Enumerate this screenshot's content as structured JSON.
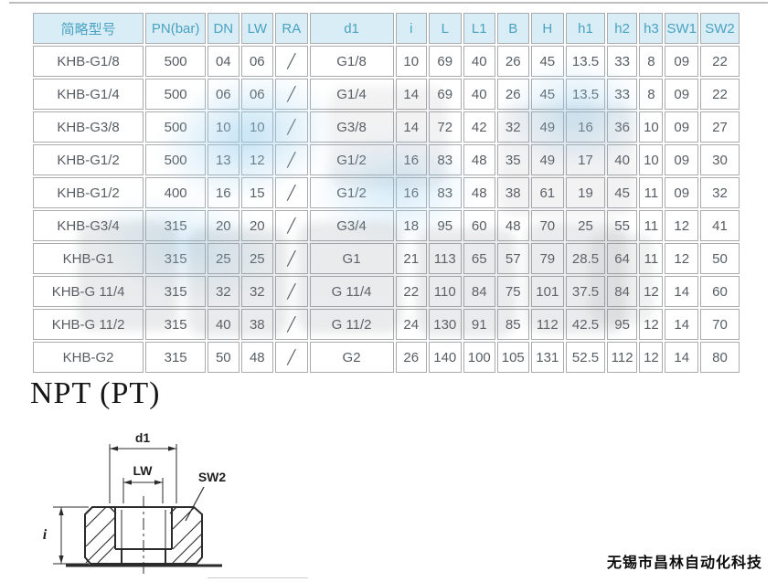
{
  "spec_table": {
    "columns": [
      "简略型号",
      "PN(bar)",
      "DN",
      "LW",
      "RA",
      "d1",
      "i",
      "L",
      "L1",
      "B",
      "H",
      "h1",
      "h2",
      "h3",
      "SW1",
      "SW2"
    ],
    "rows": [
      [
        "KHB-G1/8",
        "500",
        "04",
        "06",
        "╱",
        "G1/8",
        "10",
        "69",
        "40",
        "26",
        "45",
        "13.5",
        "33",
        "8",
        "09",
        "22"
      ],
      [
        "KHB-G1/4",
        "500",
        "06",
        "06",
        "╱",
        "G1/4",
        "14",
        "69",
        "40",
        "26",
        "45",
        "13.5",
        "33",
        "8",
        "09",
        "22"
      ],
      [
        "KHB-G3/8",
        "500",
        "10",
        "10",
        "╱",
        "G3/8",
        "14",
        "72",
        "42",
        "32",
        "49",
        "16",
        "36",
        "10",
        "09",
        "27"
      ],
      [
        "KHB-G1/2",
        "500",
        "13",
        "12",
        "╱",
        "G1/2",
        "16",
        "83",
        "48",
        "35",
        "49",
        "17",
        "40",
        "10",
        "09",
        "30"
      ],
      [
        "KHB-G1/2",
        "400",
        "16",
        "15",
        "╱",
        "G1/2",
        "16",
        "83",
        "48",
        "38",
        "61",
        "19",
        "45",
        "11",
        "09",
        "32"
      ],
      [
        "KHB-G3/4",
        "315",
        "20",
        "20",
        "╱",
        "G3/4",
        "18",
        "95",
        "60",
        "48",
        "70",
        "25",
        "55",
        "11",
        "12",
        "41"
      ],
      [
        "KHB-G1",
        "315",
        "25",
        "25",
        "╱",
        "G1",
        "21",
        "113",
        "65",
        "57",
        "79",
        "28.5",
        "64",
        "11",
        "12",
        "50"
      ],
      [
        "KHB-G 11/4",
        "315",
        "32",
        "32",
        "╱",
        "G 11/4",
        "22",
        "110",
        "84",
        "75",
        "101",
        "37.5",
        "84",
        "12",
        "14",
        "60"
      ],
      [
        "KHB-G 11/2",
        "315",
        "40",
        "38",
        "╱",
        "G 11/2",
        "24",
        "130",
        "91",
        "85",
        "112",
        "42.5",
        "95",
        "12",
        "14",
        "70"
      ],
      [
        "KHB-G2",
        "315",
        "50",
        "48",
        "╱",
        "G2",
        "26",
        "140",
        "100",
        "105",
        "131",
        "52.5",
        "112",
        "12",
        "14",
        "80"
      ]
    ]
  },
  "section_heading": "NPT (PT)",
  "diagram": {
    "labels": {
      "d1": "d1",
      "lw": "LW",
      "sw2": "SW2",
      "i": "i"
    }
  },
  "footer": {
    "company_name": "无锡市昌林自动化科技"
  },
  "colors": {
    "header_bg": "#d9edf6",
    "header_text": "#4aa2c2",
    "cell_text": "#575d62",
    "border": "#a9abad"
  }
}
